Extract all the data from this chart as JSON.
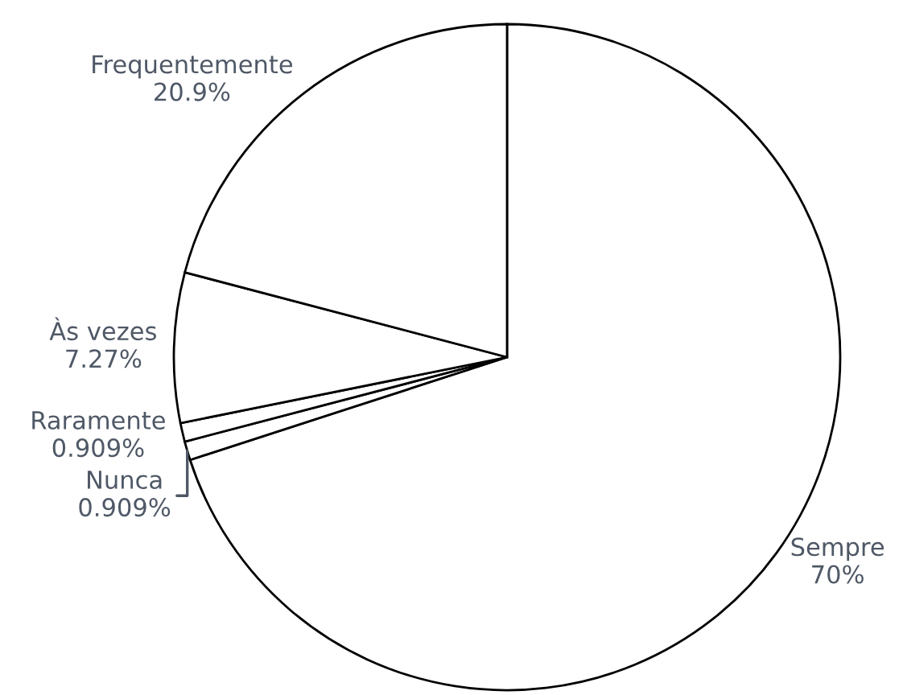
{
  "chart_data": {
    "type": "pie",
    "categories": [
      "Sempre",
      "Nunca",
      "Raramente",
      "Às vezes",
      "Frequentemente"
    ],
    "values": [
      70,
      0.909,
      0.909,
      7.27,
      20.9
    ],
    "value_labels": [
      "70%",
      "0.909%",
      "0.909%",
      "7.27%",
      "20.9%"
    ],
    "colors": [
      "#ffffff",
      "#ffffff",
      "#ffffff",
      "#ffffff",
      "#ffffff"
    ]
  }
}
